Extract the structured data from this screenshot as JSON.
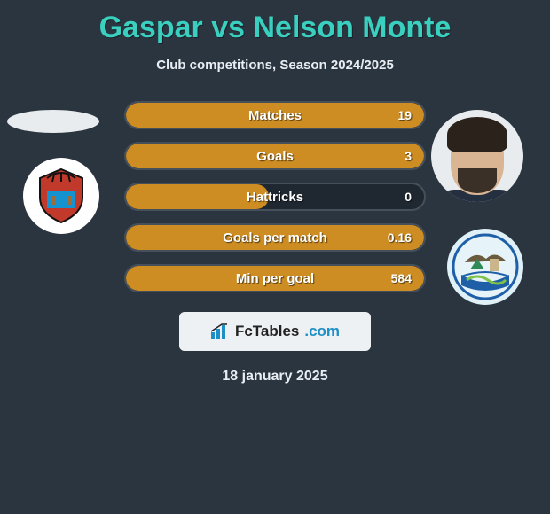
{
  "title": "Gaspar vs Nelson Monte",
  "subtitle": "Club competitions, Season 2024/2025",
  "date": "18 january 2025",
  "colors": {
    "background": "#2b3540",
    "title": "#3ad0c0",
    "row_bg": "#1f2730",
    "row_border": "#46505a",
    "fill": "#ce8d22",
    "text": "#ffffff",
    "footer_badge_bg": "#eef1f4",
    "dotcom": "#1e8fc6"
  },
  "branding": {
    "name": "FcTables",
    "suffix": ".com"
  },
  "stats": [
    {
      "label": "Matches",
      "value": "19",
      "fill_pct": 100
    },
    {
      "label": "Goals",
      "value": "3",
      "fill_pct": 100
    },
    {
      "label": "Hattricks",
      "value": "0",
      "fill_pct": 48
    },
    {
      "label": "Goals per match",
      "value": "0.16",
      "fill_pct": 100
    },
    {
      "label": "Min per goal",
      "value": "584",
      "fill_pct": 100
    }
  ],
  "players": {
    "left": {
      "name": "Gaspar",
      "club": "CD Mirandés"
    },
    "right": {
      "name": "Nelson Monte",
      "club": "Málaga CF"
    }
  }
}
